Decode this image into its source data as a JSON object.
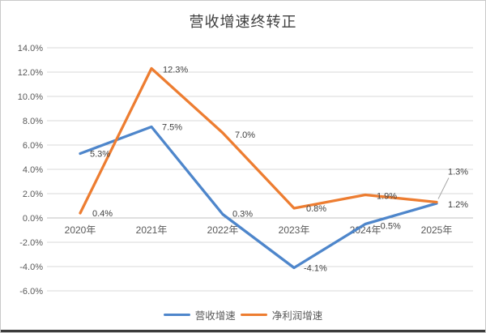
{
  "chart_data": {
    "type": "line",
    "title": "营收增速终转正",
    "categories": [
      "2020年",
      "2021年",
      "2022年",
      "2023年",
      "2024年",
      "2025年"
    ],
    "series": [
      {
        "key": "revenue-growth",
        "name": "营收增速",
        "color": "#4e86cb",
        "values": [
          5.3,
          7.5,
          0.3,
          -4.1,
          -0.5,
          1.2
        ],
        "labels": [
          "5.3%",
          "7.5%",
          "0.3%",
          "-4.1%",
          "-0.5%",
          "1.2%"
        ],
        "label_offsets": [
          [
            12,
            0
          ],
          [
            13,
            0
          ],
          [
            12,
            -1
          ],
          [
            12,
            0
          ],
          [
            15,
            2
          ],
          [
            14,
            1
          ]
        ],
        "leader_flags": [
          false,
          false,
          false,
          false,
          false,
          false
        ]
      },
      {
        "key": "net-profit-growth",
        "name": "净利润增速",
        "color": "#ed7d31",
        "values": [
          0.4,
          12.3,
          7.0,
          0.8,
          1.9,
          1.3
        ],
        "labels": [
          "0.4%",
          "12.3%",
          "7.0%",
          "0.8%",
          "1.9%",
          "1.3%"
        ],
        "label_offsets": [
          [
            15,
            0
          ],
          [
            14,
            1
          ],
          [
            15,
            2
          ],
          [
            15,
            0
          ],
          [
            14,
            1
          ],
          [
            14,
            -38
          ]
        ],
        "leader_flags": [
          false,
          false,
          false,
          false,
          false,
          true
        ]
      }
    ],
    "y_axis": {
      "min": -6,
      "max": 14,
      "step": 2,
      "tick_labels": [
        "14.0%",
        "12.0%",
        "10.0%",
        "8.0%",
        "6.0%",
        "4.0%",
        "2.0%",
        "0.0%",
        "-2.0%",
        "-4.0%",
        "-6.0%"
      ]
    },
    "grid": true,
    "legend_position": "bottom",
    "colors": {
      "gridline": "#d9d9d9",
      "zero_axis": "#bfbfbf",
      "leader_line": "#a6a6a6",
      "tick_text": "#595959",
      "label_text": "#404040",
      "title_text": "#3f3f3f"
    }
  }
}
